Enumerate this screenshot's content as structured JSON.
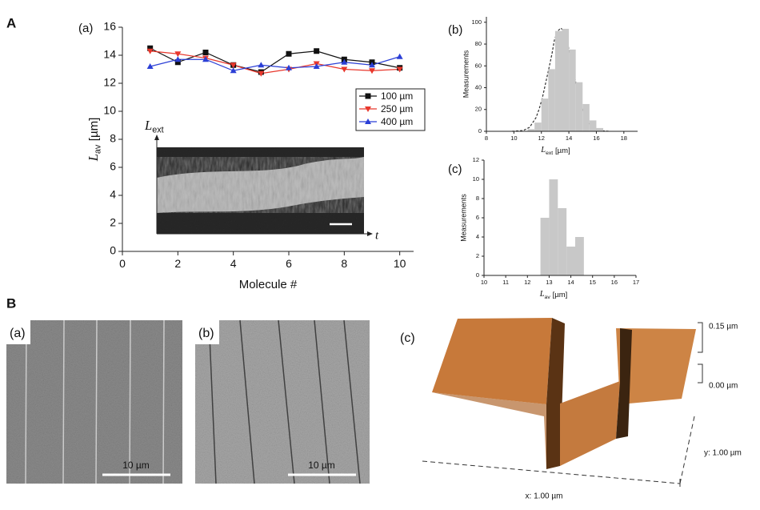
{
  "figure_labels": [
    "A",
    "B"
  ],
  "chart_data": [
    {
      "type": "line",
      "label": "(a)",
      "x": [
        1,
        2,
        3,
        4,
        5,
        6,
        7,
        8,
        9,
        10
      ],
      "series": [
        {
          "name": "100 µm",
          "color": "#111111",
          "marker": "square",
          "values": [
            14.5,
            13.5,
            14.2,
            13.3,
            12.8,
            14.1,
            14.3,
            13.7,
            13.5,
            13.1
          ]
        },
        {
          "name": "250 µm",
          "color": "#e8372c",
          "marker": "triangle-down",
          "values": [
            14.3,
            14.1,
            13.8,
            13.3,
            12.7,
            13.0,
            13.4,
            13.0,
            12.9,
            13.0
          ]
        },
        {
          "name": "400 µm",
          "color": "#2b3fd6",
          "marker": "triangle-up",
          "values": [
            13.2,
            13.7,
            13.7,
            12.9,
            13.3,
            13.1,
            13.2,
            13.5,
            13.3,
            13.9
          ]
        }
      ],
      "xlim": [
        0,
        10.5
      ],
      "xticks": [
        0,
        2,
        4,
        6,
        8,
        10
      ],
      "ylim": [
        0,
        16
      ],
      "yticks": [
        0,
        2,
        4,
        6,
        8,
        10,
        12,
        14,
        16
      ],
      "x_label": "Molecule #",
      "y_label": {
        "symbol": "L",
        "subscript": "av",
        "unit": "[µm]"
      },
      "legend_loc": "upper right",
      "inset": {
        "y_label": {
          "symbol": "L",
          "subscript": "ext"
        },
        "x_label": "t"
      }
    },
    {
      "type": "histogram",
      "label": "(b)",
      "color": "#c8c8c8",
      "bins": [
        11,
        11.5,
        12,
        12.5,
        13,
        13.5,
        14,
        14.5,
        15,
        15.5,
        16,
        16.5
      ],
      "values": [
        2,
        8,
        30,
        57,
        92,
        94,
        75,
        45,
        25,
        10,
        3
      ],
      "xlim": [
        8,
        19
      ],
      "xticks": [
        8,
        10,
        12,
        14,
        16,
        18
      ],
      "ylim": [
        0,
        105
      ],
      "yticks": [
        0,
        20,
        40,
        60,
        80,
        100
      ],
      "x_label": {
        "symbol": "L",
        "subscript": "ext",
        "unit": "[µm]"
      },
      "y_label": "Measurements"
    },
    {
      "type": "histogram",
      "label": "(c)",
      "color": "#c8c8c8",
      "bins": [
        12.6,
        13.0,
        13.4,
        13.8,
        14.2,
        14.6
      ],
      "values": [
        6,
        10,
        7,
        3,
        4
      ],
      "xlim": [
        10,
        17
      ],
      "xticks": [
        10,
        11,
        12,
        13,
        14,
        15,
        16,
        17
      ],
      "ylim": [
        0,
        12
      ],
      "yticks": [
        0,
        2,
        4,
        6,
        8,
        10,
        12
      ],
      "x_label": {
        "symbol": "L",
        "subscript": "av",
        "unit": "[µm]"
      },
      "y_label": "Measurements"
    }
  ],
  "panel_B": {
    "panels": [
      {
        "label": "(a)",
        "scale_bar": "10 µm"
      },
      {
        "label": "(b)",
        "scale_bar": "10 µm"
      },
      {
        "label": "(c)",
        "z_labels": [
          "0.15 µm",
          "0.00 µm"
        ],
        "y_label": "y: 1.00 µm",
        "x_label": "x: 1.00 µm"
      }
    ]
  }
}
